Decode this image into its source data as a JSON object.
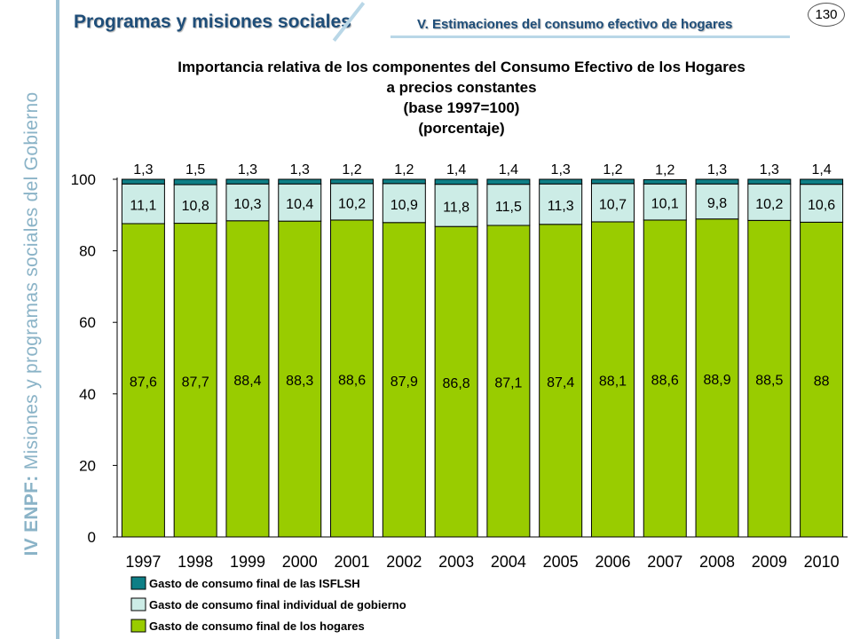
{
  "sidebar": {
    "text_part1": "IV ENPF:",
    "text_part2": "Misiones y programas sociales del Gobierno"
  },
  "header": {
    "title": "Programas y misiones sociales",
    "subtitle": "V. Estimaciones del consumo efectivo de hogares",
    "page_number": "130"
  },
  "chart_data": {
    "type": "bar",
    "stacked": true,
    "title": "Importancia relativa de los componentes del Consumo Efectivo de los Hogares",
    "title_lines": [
      "Importancia relativa de los componentes del Consumo Efectivo de los Hogares",
      "a precios constantes",
      "(base 1997=100)",
      "(porcentaje)"
    ],
    "categories": [
      "1997",
      "1998",
      "1999",
      "2000",
      "2001",
      "2002",
      "2003",
      "2004",
      "2005",
      "2006",
      "2007",
      "2008",
      "2009",
      "2010"
    ],
    "series": [
      {
        "name": "Gasto de consumo final de los hogares",
        "color": "#99cc00",
        "values": [
          87.6,
          87.7,
          88.4,
          88.3,
          88.6,
          87.9,
          86.8,
          87.1,
          87.4,
          88.1,
          88.6,
          88.9,
          88.5,
          88
        ],
        "labels": [
          "87,6",
          "87,7",
          "88,4",
          "88,3",
          "88,6",
          "87,9",
          "86,8",
          "87,1",
          "87,4",
          "88,1",
          "88,6",
          "88,9",
          "88,5",
          "88"
        ]
      },
      {
        "name": "Gasto de consumo final individual de gobierno",
        "color": "#ccece6",
        "values": [
          11.1,
          10.8,
          10.3,
          10.4,
          10.2,
          10.9,
          11.8,
          11.5,
          11.3,
          10.7,
          10.1,
          9.8,
          10.2,
          10.6
        ],
        "labels": [
          "11,1",
          "10,8",
          "10,3",
          "10,4",
          "10,2",
          "10,9",
          "11,8",
          "11,5",
          "11,3",
          "10,7",
          "10,1",
          "9,8",
          "10,2",
          "10,6"
        ]
      },
      {
        "name": "Gasto de consumo final de las ISFLSH",
        "color": "#0e7f86",
        "values": [
          1.3,
          1.5,
          1.3,
          1.3,
          1.2,
          1.2,
          1.4,
          1.4,
          1.3,
          1.2,
          1.2,
          1.3,
          1.3,
          1.4
        ],
        "labels": [
          "1,3",
          "1,5",
          "1,3",
          "1,3",
          "1,2",
          "1,2",
          "1,4",
          "1,4",
          "1,3",
          "1,2",
          "1,2",
          "1,3",
          "1,3",
          "1,4"
        ]
      }
    ],
    "legend_order": [
      2,
      1,
      0
    ],
    "ylim": [
      0,
      100
    ],
    "yticks": [
      0,
      20,
      40,
      60,
      80,
      100
    ],
    "grid": false,
    "legend_position": "bottom-left"
  }
}
